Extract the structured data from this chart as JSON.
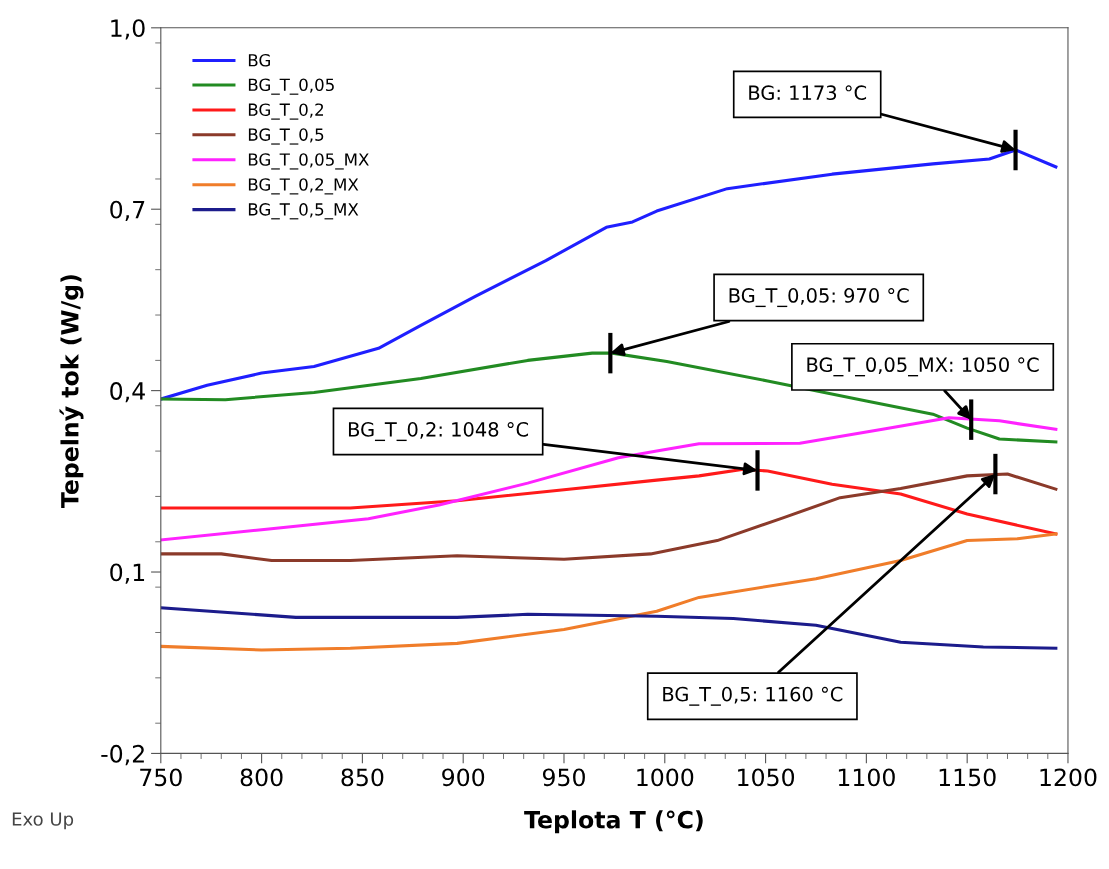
{
  "chart_data": {
    "type": "line",
    "xlabel": "Teplota T (°C)",
    "ylabel": "Tepelný tok (W/g)",
    "xlim": [
      750,
      1200
    ],
    "xticks": [
      750,
      800,
      850,
      900,
      950,
      1000,
      1050,
      1100,
      1150,
      1200
    ],
    "ylim": [
      -0.2,
      1.0
    ],
    "yticks": [
      {
        "value": -0.2,
        "label": "-0,2"
      },
      {
        "value": 0.1,
        "label": "0,1"
      },
      {
        "value": 0.4,
        "label": "0,4"
      },
      {
        "value": 0.7,
        "label": "0,7"
      },
      {
        "value": 1.0,
        "label": "1,0"
      }
    ],
    "grid": false,
    "legend": "top left",
    "line_style": "solid",
    "marker": "none",
    "series": [
      {
        "name": "BG",
        "color": "#1f1fff",
        "x": [
          750,
          773,
          800,
          826,
          858,
          879,
          906,
          941,
          971,
          984,
          996,
          1031,
          1083,
          1133,
          1161,
          1174,
          1194
        ],
        "values": [
          0.386,
          0.409,
          0.429,
          0.44,
          0.47,
          0.508,
          0.556,
          0.615,
          0.67,
          0.679,
          0.697,
          0.734,
          0.758,
          0.775,
          0.783,
          0.798,
          0.77
        ]
      },
      {
        "name": "BG_T_0,05",
        "color": "#228b22",
        "x": [
          750,
          782,
          826,
          879,
          932,
          964,
          974,
          1001,
          1051,
          1100,
          1133,
          1150,
          1166,
          1194
        ],
        "values": [
          0.386,
          0.385,
          0.397,
          0.42,
          0.45,
          0.462,
          0.462,
          0.448,
          0.416,
          0.383,
          0.361,
          0.338,
          0.32,
          0.315
        ]
      },
      {
        "name": "BG_T_0,2",
        "color": "#ff1a1a",
        "x": [
          750,
          844,
          897,
          950,
          996,
          1017,
          1039,
          1051,
          1083,
          1117,
          1150,
          1194
        ],
        "values": [
          0.206,
          0.206,
          0.218,
          0.236,
          0.252,
          0.259,
          0.27,
          0.267,
          0.245,
          0.229,
          0.196,
          0.163
        ]
      },
      {
        "name": "BG_T_0,5",
        "color": "#8b3a2a",
        "x": [
          750,
          780,
          805,
          844,
          897,
          950,
          993,
          1026,
          1059,
          1087,
          1117,
          1150,
          1170,
          1194
        ],
        "values": [
          0.13,
          0.13,
          0.119,
          0.119,
          0.127,
          0.121,
          0.13,
          0.152,
          0.19,
          0.223,
          0.238,
          0.259,
          0.262,
          0.237
        ]
      },
      {
        "name": "BG_T_0,05_MX",
        "color": "#ff22ff",
        "x": [
          750,
          800,
          853,
          888,
          932,
          977,
          996,
          1017,
          1067,
          1108,
          1141,
          1166,
          1194
        ],
        "values": [
          0.153,
          0.17,
          0.188,
          0.211,
          0.247,
          0.289,
          0.3,
          0.312,
          0.313,
          0.336,
          0.355,
          0.35,
          0.336
        ]
      },
      {
        "name": "BG_T_0,2_MX",
        "color": "#f07d2a",
        "x": [
          750,
          800,
          844,
          897,
          950,
          996,
          1017,
          1075,
          1117,
          1150,
          1175,
          1194
        ],
        "values": [
          -0.023,
          -0.029,
          -0.026,
          -0.018,
          0.005,
          0.035,
          0.058,
          0.089,
          0.119,
          0.152,
          0.155,
          0.163
        ]
      },
      {
        "name": "BG_T_0,5_MX",
        "color": "#1c1c8c",
        "x": [
          750,
          817,
          897,
          932,
          996,
          1034,
          1075,
          1117,
          1158,
          1194
        ],
        "values": [
          0.041,
          0.025,
          0.025,
          0.03,
          0.027,
          0.023,
          0.012,
          -0.016,
          -0.024,
          -0.026
        ]
      }
    ],
    "annotations": [
      {
        "text": "BG: 1173 °C",
        "x": 1174,
        "y": 0.798
      },
      {
        "text": "BG_T_0,05: 970 °C",
        "x": 973,
        "y": 0.462
      },
      {
        "text": "BG_T_0,05_MX: 1050 °C",
        "x": 1152,
        "y": 0.352
      },
      {
        "text": "BG_T_0,2: 1048 °C",
        "x": 1046,
        "y": 0.268
      },
      {
        "text": "BG_T_0,5: 1160 °C",
        "x": 1164,
        "y": 0.262
      },
      "Exo Up"
    ]
  }
}
